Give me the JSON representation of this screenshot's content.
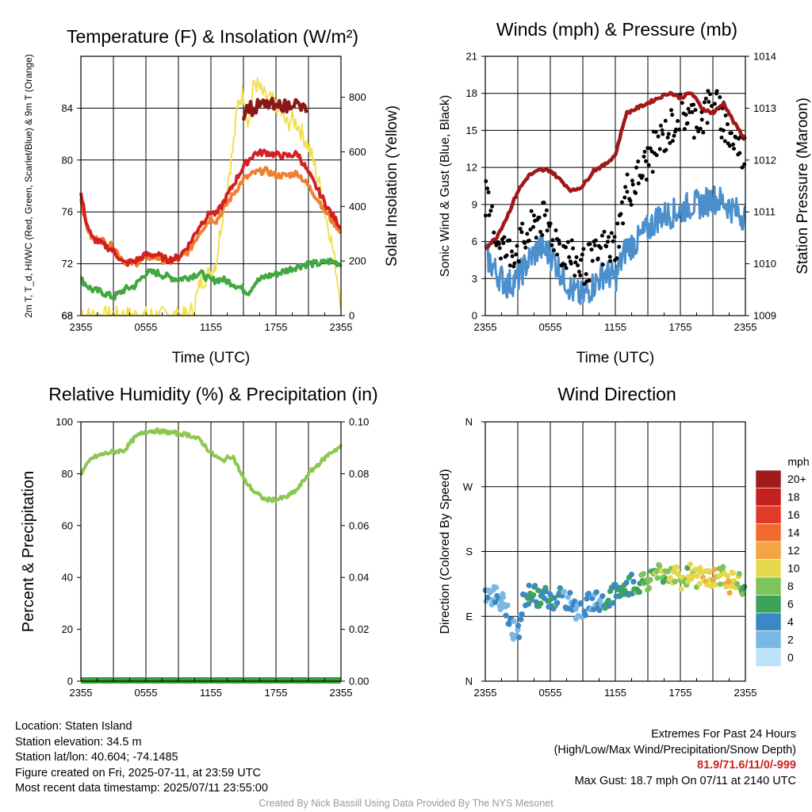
{
  "chart_data": [
    {
      "type": "line",
      "title": "Temperature (F) & Insolation (W/m²)",
      "ylabel": "2m T, T_d, HI/WC (Red, Green, Scarlet/Blue) & 9m T (Orange)",
      "ylabel_right": "Solar Insolation (Yellow)",
      "xlabel": "Time (UTC)",
      "x_ticks": [
        "2355",
        "0555",
        "1155",
        "1755",
        "2355"
      ],
      "y_ticks": [
        68,
        72,
        76,
        80,
        84
      ],
      "y2_ticks": [
        0,
        200,
        400,
        600,
        800
      ],
      "ylim": [
        68,
        88
      ],
      "y2lim": [
        0,
        950
      ],
      "series": [
        {
          "role": "2m T",
          "color": "#d42020",
          "axis": "left",
          "x": [
            0,
            0.5,
            1,
            2,
            3,
            4,
            5,
            6,
            7,
            8,
            9,
            10,
            11,
            12,
            12.5,
            13,
            14,
            15,
            16,
            17,
            17.5,
            18,
            19,
            20,
            21,
            22,
            23,
            24
          ],
          "y": [
            77.4,
            75.2,
            74.0,
            73.5,
            73.0,
            72.0,
            72.2,
            72.7,
            72.7,
            72.3,
            72.5,
            73.5,
            75.0,
            76.0,
            75.8,
            76.5,
            78.0,
            79.5,
            80.5,
            80.6,
            80.5,
            80.4,
            80.3,
            80.5,
            79.0,
            77.5,
            76.0,
            74.8
          ]
        },
        {
          "role": "9m T",
          "color": "#f08030",
          "axis": "left",
          "x": [
            0,
            0.5,
            1,
            2,
            3,
            4,
            5,
            6,
            7,
            8,
            9,
            10,
            11,
            12,
            12.5,
            13,
            14,
            15,
            16,
            17,
            17.5,
            18,
            19,
            20,
            21,
            22,
            23,
            24
          ],
          "y": [
            77.0,
            75.0,
            74.0,
            73.8,
            73.3,
            72.2,
            72.0,
            72.5,
            72.5,
            72.1,
            72.3,
            73.0,
            74.5,
            75.5,
            75.3,
            76.0,
            77.3,
            78.5,
            79.0,
            79.2,
            79.0,
            78.8,
            78.8,
            79.0,
            78.0,
            76.8,
            75.5,
            74.5
          ]
        },
        {
          "role": "Td",
          "color": "#40a840",
          "axis": "left",
          "x": [
            0,
            1,
            2,
            3,
            4,
            5,
            6,
            7,
            8,
            9,
            10,
            11,
            12,
            13,
            14,
            15,
            15.5,
            16,
            17,
            18,
            19,
            20,
            21,
            22,
            23,
            24
          ],
          "y": [
            70.8,
            70.0,
            69.8,
            69.4,
            70.0,
            70.3,
            71.3,
            71.3,
            71.0,
            70.8,
            71.0,
            71.3,
            70.7,
            70.8,
            70.5,
            70.0,
            69.8,
            70.5,
            71.0,
            71.2,
            71.5,
            71.8,
            72.0,
            72.0,
            72.2,
            72.0
          ]
        },
        {
          "role": "HI",
          "color": "#8b1818",
          "axis": "left",
          "x": [
            15,
            15.5,
            16,
            16.5,
            17,
            17.5,
            18,
            18.5,
            19,
            19.5,
            20,
            20.5
          ],
          "y": [
            83.6,
            84.2,
            83.8,
            84.3,
            84.1,
            84.4,
            83.8,
            84.4,
            84.0,
            84.6,
            84.2,
            83.9
          ]
        },
        {
          "role": "Solar Insolation",
          "color": "#f2df50",
          "axis": "right",
          "x": [
            0,
            0.5,
            1,
            2,
            3,
            4,
            5,
            6,
            7,
            8,
            9,
            10,
            10.5,
            11,
            11.5,
            12,
            12.5,
            13,
            13.5,
            14,
            14.5,
            15,
            15.5,
            16,
            16.5,
            17,
            17.5,
            18,
            18.5,
            19,
            19.5,
            20,
            20.5,
            21,
            21.5,
            22,
            22.5,
            23,
            23.5,
            24
          ],
          "y": [
            20,
            0,
            0,
            0,
            0,
            0,
            0,
            0,
            0,
            0,
            0,
            0,
            40,
            120,
            140,
            160,
            200,
            350,
            480,
            600,
            780,
            820,
            700,
            860,
            830,
            800,
            790,
            770,
            740,
            700,
            720,
            700,
            660,
            620,
            560,
            480,
            380,
            300,
            180,
            50
          ]
        }
      ]
    },
    {
      "type": "scatter",
      "title": "Winds (mph) & Pressure (mb)",
      "ylabel": "Sonic Wind & Gust (Blue, Black)",
      "ylabel_right": "Station Pressure (Maroon)",
      "xlabel": "Time (UTC)",
      "x_ticks": [
        "2355",
        "0555",
        "1155",
        "1755",
        "2355"
      ],
      "y_ticks": [
        0,
        3,
        6,
        9,
        12,
        15,
        18,
        21
      ],
      "y2_ticks": [
        1009,
        1010,
        1011,
        1012,
        1013,
        1014
      ],
      "ylim": [
        0,
        21
      ],
      "y2lim": [
        1009,
        1014
      ],
      "series": [
        {
          "role": "Wind",
          "color": "#4b90cc",
          "axis": "left",
          "x": [
            0,
            1,
            2,
            3,
            4,
            5,
            6,
            7,
            8,
            9,
            10,
            11,
            12,
            13,
            14,
            15,
            16,
            17,
            18,
            19,
            20,
            21,
            22,
            23,
            24
          ],
          "y": [
            5.0,
            3.5,
            2.5,
            3.0,
            4.5,
            5.5,
            5.0,
            3.5,
            2.0,
            1.5,
            2.5,
            3.5,
            3.0,
            5.5,
            6.0,
            7.0,
            8.0,
            8.2,
            8.5,
            9.0,
            9.0,
            9.5,
            9.2,
            8.5,
            8.0
          ]
        },
        {
          "role": "Gust",
          "color": "#000000",
          "axis": "left",
          "x": [
            0,
            1,
            2,
            3,
            4,
            5,
            6,
            7,
            8,
            9,
            10,
            11,
            12,
            13,
            14,
            15,
            16,
            17,
            18,
            19,
            20,
            21,
            22,
            23,
            24
          ],
          "y": [
            9.5,
            6.5,
            5.0,
            5.5,
            6.5,
            8.0,
            7.0,
            5.5,
            4.5,
            4.0,
            4.5,
            5.5,
            5.5,
            10.0,
            11.0,
            12.5,
            14.0,
            15.0,
            16.5,
            16.0,
            16.0,
            17.5,
            15.5,
            14.0,
            13.0
          ]
        },
        {
          "role": "Pressure",
          "color": "#a01818",
          "axis": "right",
          "x": [
            0,
            1,
            2,
            3,
            4,
            5,
            6,
            7,
            8,
            9,
            10,
            11,
            12,
            13,
            14,
            15,
            16,
            17,
            18,
            19,
            20,
            21,
            22,
            23,
            24
          ],
          "y": [
            1010.3,
            1010.5,
            1010.9,
            1011.4,
            1011.7,
            1011.8,
            1011.8,
            1011.6,
            1011.4,
            1011.5,
            1011.8,
            1011.9,
            1012.1,
            1012.9,
            1013.0,
            1013.1,
            1013.2,
            1013.3,
            1013.2,
            1013.3,
            1013.0,
            1012.9,
            1013.1,
            1012.7,
            1012.4
          ]
        }
      ]
    },
    {
      "type": "line",
      "title": "Relative Humidity (%) & Precipitation (in)",
      "ylabel": "Percent & Precipitation",
      "x_ticks": [
        "2355",
        "0555",
        "1155",
        "1755",
        "2355"
      ],
      "y_ticks": [
        0,
        20,
        40,
        60,
        80,
        100
      ],
      "y2_ticks": [
        "0.00",
        "0.02",
        "0.04",
        "0.06",
        "0.08",
        "0.10"
      ],
      "ylim": [
        0,
        100
      ],
      "y2lim": [
        0,
        0.1
      ],
      "series": [
        {
          "role": "RH",
          "color": "#8cc850",
          "axis": "left",
          "x": [
            0,
            1,
            2,
            3,
            4,
            5,
            6,
            7,
            8,
            9,
            10,
            11,
            12,
            13,
            14,
            15,
            16,
            17,
            18,
            19,
            20,
            21,
            22,
            23,
            24
          ],
          "y": [
            80,
            86,
            87.5,
            88.5,
            89,
            94,
            96.5,
            96.5,
            96,
            95.5,
            95,
            93,
            88,
            85,
            87,
            78,
            73,
            70,
            70,
            71,
            74,
            80,
            84,
            88,
            90.5
          ]
        },
        {
          "role": "Precipitation",
          "color": "#3a9e3a",
          "axis": "right",
          "x": [
            0,
            24
          ],
          "y": [
            0,
            0
          ]
        }
      ]
    },
    {
      "type": "scatter",
      "title": "Wind Direction",
      "ylabel": "Direction (Colored By Speed)",
      "x_ticks": [
        "2355",
        "0555",
        "1155",
        "1755",
        "2355"
      ],
      "y_ticks": [
        "N",
        "E",
        "S",
        "W",
        "N"
      ],
      "y_values_deg": [
        0,
        90,
        180,
        270,
        360
      ],
      "points_x": [
        0,
        0.5,
        1,
        1.5,
        2,
        2.5,
        3,
        3.5,
        4,
        4.5,
        5,
        5.5,
        6,
        6.5,
        7,
        7.5,
        8,
        8.5,
        9,
        9.5,
        10,
        10.5,
        11,
        11.5,
        12,
        12.5,
        13,
        13.5,
        14,
        14.5,
        15,
        15.5,
        16,
        16.5,
        17,
        17.5,
        18,
        18.5,
        19,
        19.5,
        20,
        20.5,
        21,
        21.5,
        22,
        22.5,
        23,
        23.5,
        24
      ],
      "points_dir": [
        125,
        118,
        120,
        110,
        100,
        75,
        60,
        110,
        120,
        125,
        112,
        118,
        110,
        115,
        120,
        112,
        108,
        96,
        102,
        108,
        112,
        110,
        115,
        118,
        125,
        122,
        130,
        135,
        128,
        140,
        135,
        150,
        158,
        145,
        150,
        148,
        140,
        145,
        155,
        138,
        150,
        145,
        140,
        145,
        150,
        135,
        140,
        135,
        128
      ],
      "points_speed": [
        4,
        2,
        4,
        1,
        3,
        3,
        2,
        4,
        5,
        4,
        5,
        4,
        5,
        4,
        4,
        3,
        4,
        2,
        3,
        4,
        3,
        4,
        4,
        5,
        4,
        5,
        6,
        5,
        7,
        6,
        8,
        7,
        9,
        7,
        8,
        9,
        10,
        8,
        9,
        10,
        11,
        10,
        11,
        9,
        10,
        11,
        10,
        8,
        4
      ],
      "legend_title": "mph",
      "legend_labels": [
        "20+",
        "18",
        "16",
        "14",
        "12",
        "10",
        "8",
        "6",
        "4",
        "2",
        "0"
      ],
      "legend_colors": [
        "#a01c1c",
        "#c42020",
        "#e03a2a",
        "#f06a2c",
        "#f5a445",
        "#e6d84c",
        "#7fc45a",
        "#3ea35a",
        "#3a88c4",
        "#7ab8e4",
        "#bde3f8"
      ]
    }
  ],
  "info": {
    "location": "Location: Staten Island",
    "elevation": "Station elevation: 34.5 m",
    "latlon": "Station lat/lon: 40.604; -74.1485",
    "created": "Figure created on Fri, 2025-07-11, at 23:59 UTC",
    "timestamp": "Most recent data timestamp: 2025/07/11 23:55:00"
  },
  "extremes": {
    "title": "Extremes For Past 24 Hours",
    "subtitle": "(High/Low/Max Wind/Precipitation/Snow Depth)",
    "values": "81.9/71.6/11/0/-999",
    "gust": "Max Gust: 18.7 mph On 07/11 at 2140 UTC"
  },
  "credit": "Created By Nick Bassill Using Data Provided By The NYS Mesonet"
}
